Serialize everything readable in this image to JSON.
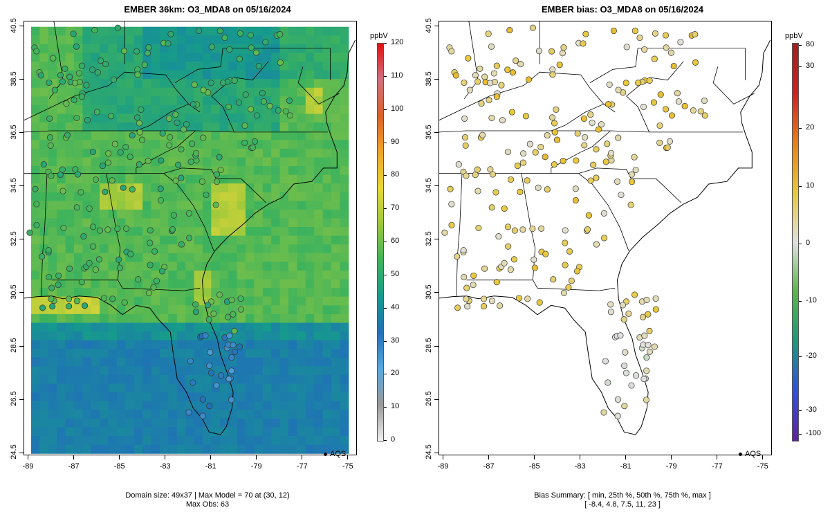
{
  "left": {
    "title": "EMBER 36km: O3_MDA8 on 05/16/2024",
    "footer_line1": "Domain size: 49x37 | Max Model = 70 at (30, 12)",
    "footer_line2": "Max Obs: 63",
    "legend_label": "AQS",
    "colorbar": {
      "unit": "ppbV",
      "labels": [
        "0",
        "10",
        "20",
        "30",
        "40",
        "50",
        "60",
        "70",
        "80",
        "90",
        "100",
        "110",
        "120"
      ],
      "range": [
        0,
        120
      ]
    }
  },
  "right": {
    "title": "EMBER bias: O3_MDA8 on 05/16/2024",
    "footer_line1": "Bias Summary: [ min, 25th %, 50th %, 75th %, max ]",
    "footer_line2": "[ -8.4,   4.8,   7.5,   11,   23 ]",
    "legend_label": "AQS",
    "colorbar": {
      "unit": "ppbV",
      "labels": [
        "-100",
        "-30",
        "-20",
        "-10",
        "0",
        "10",
        "20",
        "30",
        "80"
      ]
    }
  },
  "axes": {
    "x_labels": [
      "-89",
      "-87",
      "-85",
      "-83",
      "-81",
      "-79",
      "-77",
      "-75"
    ],
    "y_labels": [
      "24.5",
      "26.5",
      "28.5",
      "30.5",
      "32.5",
      "34.5",
      "36.5",
      "38.5",
      "40.5"
    ],
    "lon_range": [
      -89.2,
      -74.6
    ],
    "lat_range": [
      24.4,
      40.7
    ]
  },
  "colors": {
    "o3_scale": [
      "#f0f0f0",
      "#9a9a9a",
      "#56a9e0",
      "#2070b8",
      "#169a8c",
      "#3fb35c",
      "#9cc83c",
      "#e8d838",
      "#f0a52a",
      "#d8622a",
      "#d0707e",
      "#e01010"
    ],
    "bias_scale": [
      "#6020a0",
      "#3050e0",
      "#1a9a7a",
      "#58b848",
      "#e0e0e0",
      "#e8c838",
      "#e88018",
      "#d02020",
      "#a02020"
    ]
  }
}
